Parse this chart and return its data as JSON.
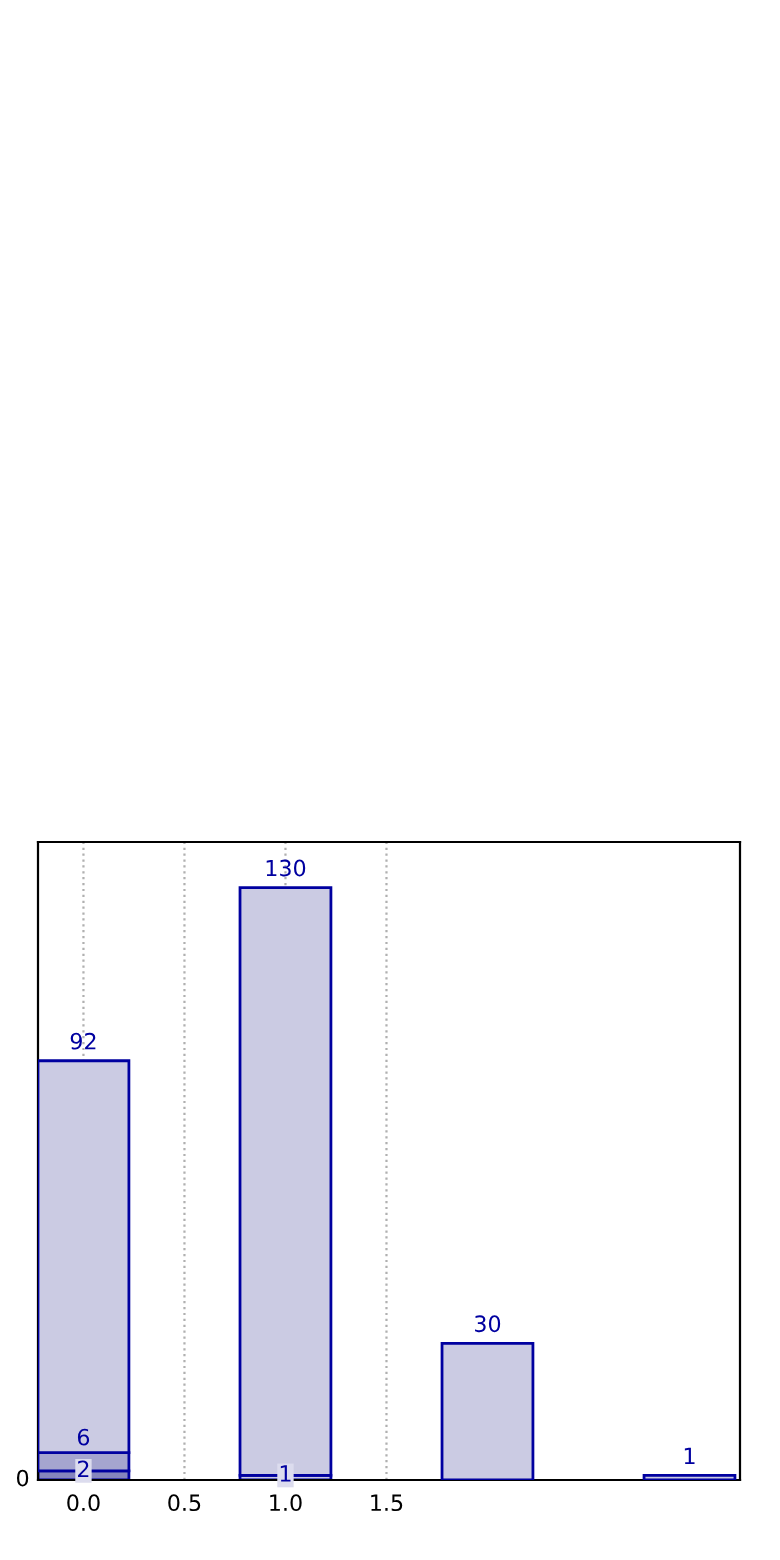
{
  "chart_data": {
    "type": "bar",
    "x": [
      0,
      1,
      2,
      3
    ],
    "stacked": true,
    "series": [
      {
        "colors": [
          "#8585bd",
          "#cbcbe3",
          null,
          null
        ],
        "values": [
          2,
          1,
          null,
          null
        ],
        "value_labels": [
          "2",
          "1",
          null,
          null
        ]
      },
      {
        "color": "#a5a5cf",
        "values": [
          4,
          null,
          null,
          null
        ]
      },
      {
        "color": "#cbcbe3",
        "values": [
          86,
          129,
          30,
          1
        ]
      }
    ],
    "totals": [
      "92",
      "130",
      "30",
      "1"
    ],
    "xlim": [
      -0.225,
      3.25
    ],
    "xticks": [
      {
        "value": 0,
        "label": "0.0"
      },
      0.5,
      {
        "value": 1,
        "label": "1.0"
      },
      1.5
    ],
    "ylim": [
      0,
      140
    ],
    "annotations": [
      "0",
      {
        "text": "6",
        "x": 0,
        "y": 6
      }
    ],
    "grid": "x",
    "line_style": "dotted"
  }
}
